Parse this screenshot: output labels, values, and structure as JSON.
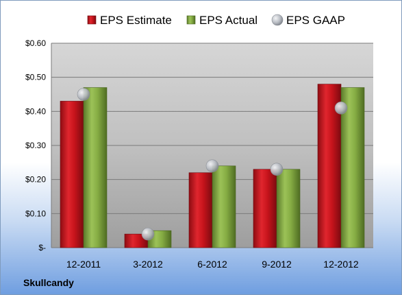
{
  "company": "Skullcandy",
  "chart_data": {
    "type": "bar",
    "categories": [
      "12-2011",
      "3-2012",
      "6-2012",
      "9-2012",
      "12-2012"
    ],
    "series": [
      {
        "name": "EPS Estimate",
        "type": "bar",
        "color": "#c0121b",
        "values": [
          0.43,
          0.04,
          0.22,
          0.23,
          0.48
        ]
      },
      {
        "name": "EPS Actual",
        "type": "bar",
        "color": "#7fa040",
        "values": [
          0.47,
          0.05,
          0.24,
          0.23,
          0.47
        ]
      },
      {
        "name": "EPS GAAP",
        "type": "marker",
        "color": "#b8bcc4",
        "values": [
          0.45,
          0.04,
          0.24,
          0.23,
          0.41
        ]
      }
    ],
    "y_ticks": [
      {
        "value": 0,
        "label": "$-"
      },
      {
        "value": 0.1,
        "label": "$0.10"
      },
      {
        "value": 0.2,
        "label": "$0.20"
      },
      {
        "value": 0.3,
        "label": "$0.30"
      },
      {
        "value": 0.4,
        "label": "$0.40"
      },
      {
        "value": 0.5,
        "label": "$0.50"
      },
      {
        "value": 0.6,
        "label": "$0.60"
      }
    ],
    "ylim": [
      0,
      0.6
    ],
    "grid": true,
    "legend_position": "top"
  }
}
